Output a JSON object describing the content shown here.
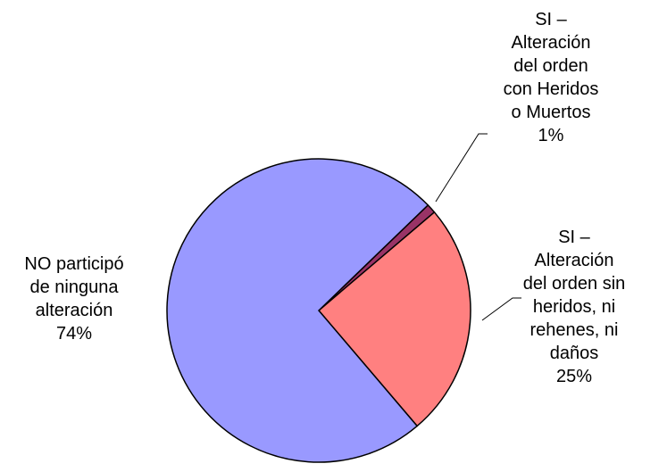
{
  "chart_data": {
    "type": "pie",
    "categories": [
      "SI – Alteración del orden con Heridos o Muertos",
      "SI – Alteración del orden sin heridos, ni rehenes, ni daños",
      "NO participó de ninguna alteración"
    ],
    "values": [
      1,
      25,
      74
    ],
    "value_labels": [
      "1%",
      "25%",
      "74%"
    ],
    "colors": [
      "#993366",
      "#ff8080",
      "#9999ff"
    ]
  }
}
